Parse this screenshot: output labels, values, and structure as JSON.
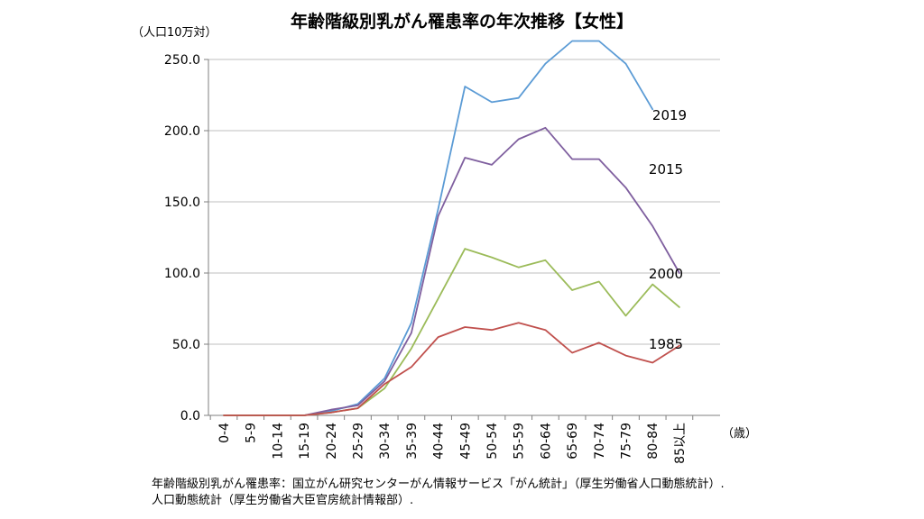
{
  "chart_data": {
    "type": "line",
    "title": "年齢階級別乳がん罹患率の年次推移【女性】",
    "ylabel": "（人口10万対）",
    "xlabel": "（歳）",
    "categories": [
      "0-4",
      "5-9",
      "10-14",
      "15-19",
      "20-24",
      "25-29",
      "30-34",
      "35-39",
      "40-44",
      "45-49",
      "50-54",
      "55-59",
      "60-64",
      "65-69",
      "70-74",
      "75-79",
      "80-84",
      "85以上"
    ],
    "y_ticks": [
      "0.0",
      "50.0",
      "100.0",
      "150.0",
      "200.0",
      "250.0"
    ],
    "ylim": [
      0,
      250
    ],
    "grid": true,
    "series": [
      {
        "name": "2019",
        "color": "#5b9bd5",
        "values": [
          0,
          0,
          0,
          0,
          3,
          8,
          26,
          65,
          145,
          231,
          220,
          223,
          247,
          263,
          263,
          247,
          215,
          null
        ]
      },
      {
        "name": "2015",
        "color": "#7f5f9f",
        "values": [
          0,
          0,
          0,
          0,
          4,
          7,
          24,
          58,
          140,
          181,
          176,
          194,
          202,
          180,
          180,
          160,
          133,
          100
        ]
      },
      {
        "name": "2000",
        "color": "#9bbb59",
        "values": [
          0,
          0,
          0,
          0,
          2,
          5,
          19,
          47,
          82,
          117,
          111,
          104,
          109,
          88,
          94,
          70,
          92,
          76
        ]
      },
      {
        "name": "1985",
        "color": "#c0504d",
        "values": [
          0,
          0,
          0,
          0,
          2,
          5,
          22,
          34,
          55,
          62,
          60,
          65,
          60,
          44,
          51,
          42,
          37,
          49
        ]
      }
    ]
  },
  "source": {
    "line1": "年齢階級別乳がん罹患率：国立がん研究センターがん情報サービス「がん統計」（厚生労働省人口動態統計）.",
    "line2": "人口動態統計（厚生労働省大臣官房統計情報部）."
  }
}
